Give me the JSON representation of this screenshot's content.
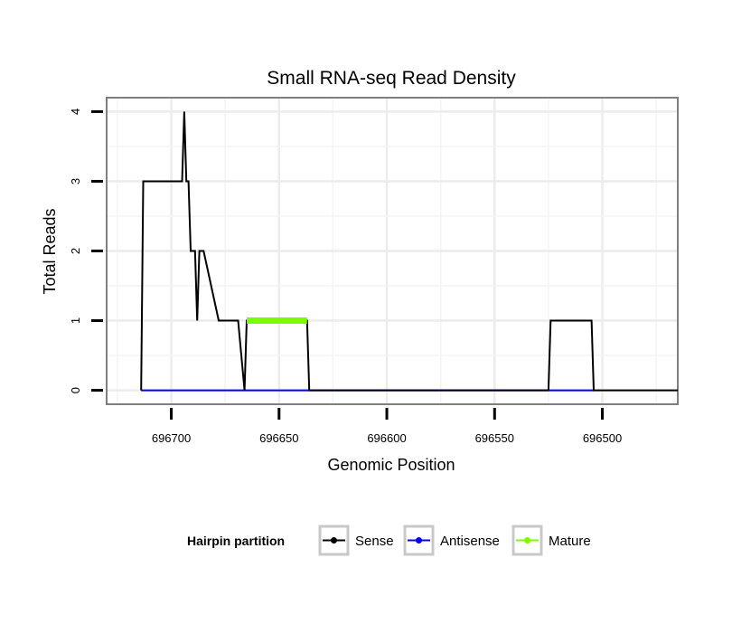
{
  "chart_data": {
    "type": "line",
    "title": "Small RNA-seq Read Density",
    "xlabel": "Genomic Position",
    "ylabel": "Total Reads",
    "xlim": [
      696730,
      696465
    ],
    "ylim": [
      -0.2,
      4.2
    ],
    "x_reversed": true,
    "grid": true,
    "x_ticks": [
      696700,
      696650,
      696600,
      696550,
      696500
    ],
    "x_tick_labels": [
      "696700",
      "696650",
      "696600",
      "696550",
      "696500"
    ],
    "y_ticks": [
      0,
      1,
      2,
      3,
      4
    ],
    "y_tick_labels": [
      "0",
      "1",
      "2",
      "3",
      "4"
    ],
    "legend_title": "Hairpin partition",
    "legend_position": "bottom",
    "series": [
      {
        "name": "Sense",
        "color": "#000000",
        "x": [
          696714,
          696713,
          696695,
          696694,
          696693,
          696692,
          696691,
          696689,
          696688,
          696687,
          696686,
          696685,
          696678,
          696677,
          696669,
          696666,
          696665,
          696664,
          696637,
          696636,
          696525,
          696524,
          696505,
          696504,
          696465
        ],
        "y": [
          0,
          3,
          3,
          4,
          3,
          3,
          2,
          2,
          1,
          2,
          2,
          2,
          1,
          1,
          1,
          0,
          1,
          1,
          1,
          0,
          0,
          1,
          1,
          0,
          0
        ]
      },
      {
        "name": "Antisense",
        "color": "#0000ff",
        "x": [
          696714,
          696504
        ],
        "y": [
          0,
          0
        ]
      },
      {
        "name": "Mature",
        "color": "#7cfc00",
        "x": [
          696665,
          696637
        ],
        "y": [
          1,
          1
        ]
      }
    ]
  }
}
